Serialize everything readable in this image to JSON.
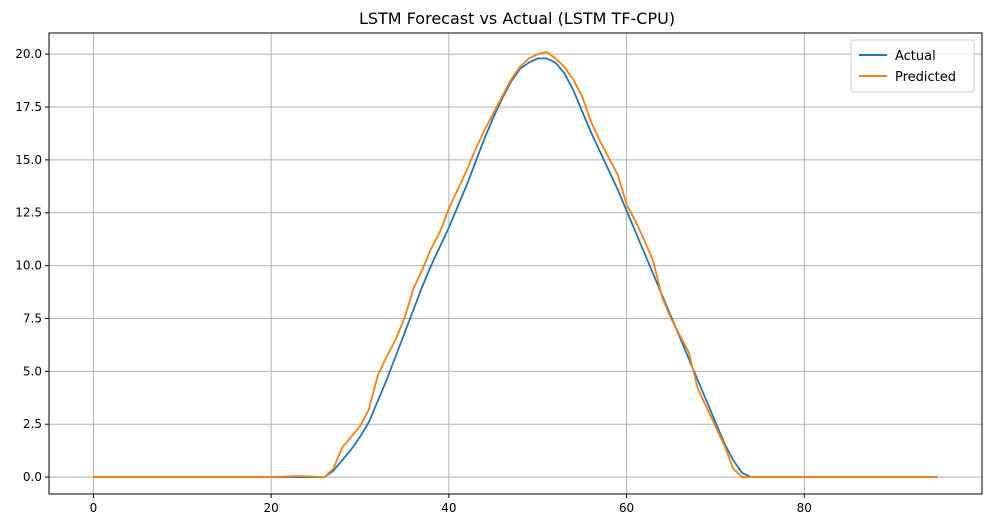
{
  "chart_data": {
    "type": "line",
    "title": "LSTM Forecast vs Actual (LSTM TF-CPU)",
    "xlabel": "",
    "ylabel": "",
    "xlim": [
      -5,
      100
    ],
    "ylim": [
      -0.8,
      21.0
    ],
    "x_ticks": [
      0,
      20,
      40,
      60,
      80
    ],
    "x_tick_labels": [
      "0",
      "20",
      "40",
      "60",
      "80"
    ],
    "y_ticks": [
      0.0,
      2.5,
      5.0,
      7.5,
      10.0,
      12.5,
      15.0,
      17.5,
      20.0
    ],
    "y_tick_labels": [
      "0.0",
      "2.5",
      "5.0",
      "7.5",
      "10.0",
      "12.5",
      "15.0",
      "17.5",
      "20.0"
    ],
    "grid": true,
    "legend_position": "top-right",
    "series": [
      {
        "name": "Actual",
        "color": "#1f77b4",
        "points": [
          [
            0,
            0.0
          ],
          [
            5,
            0.0
          ],
          [
            10,
            0.0
          ],
          [
            15,
            0.0
          ],
          [
            20,
            0.0
          ],
          [
            26,
            0.0
          ],
          [
            27,
            0.3
          ],
          [
            28,
            0.8
          ],
          [
            29,
            1.3
          ],
          [
            30,
            1.9
          ],
          [
            31,
            2.6
          ],
          [
            32,
            3.6
          ],
          [
            33,
            4.6
          ],
          [
            34,
            5.7
          ],
          [
            35,
            6.8
          ],
          [
            36,
            7.9
          ],
          [
            37,
            9.0
          ],
          [
            38,
            10.0
          ],
          [
            39,
            10.9
          ],
          [
            40,
            11.8
          ],
          [
            41,
            12.8
          ],
          [
            42,
            13.8
          ],
          [
            43,
            14.9
          ],
          [
            44,
            16.0
          ],
          [
            45,
            17.0
          ],
          [
            46,
            17.9
          ],
          [
            47,
            18.7
          ],
          [
            48,
            19.3
          ],
          [
            49,
            19.6
          ],
          [
            50,
            19.8
          ],
          [
            51,
            19.8
          ],
          [
            52,
            19.6
          ],
          [
            53,
            19.1
          ],
          [
            54,
            18.3
          ],
          [
            55,
            17.3
          ],
          [
            56,
            16.3
          ],
          [
            57,
            15.4
          ],
          [
            58,
            14.5
          ],
          [
            59,
            13.6
          ],
          [
            60,
            12.6
          ],
          [
            61,
            11.6
          ],
          [
            62,
            10.6
          ],
          [
            63,
            9.6
          ],
          [
            64,
            8.6
          ],
          [
            65,
            7.6
          ],
          [
            66,
            6.6
          ],
          [
            67,
            5.6
          ],
          [
            68,
            4.6
          ],
          [
            69,
            3.6
          ],
          [
            70,
            2.6
          ],
          [
            71,
            1.6
          ],
          [
            72,
            0.8
          ],
          [
            73,
            0.2
          ],
          [
            74,
            0.0
          ],
          [
            80,
            0.0
          ],
          [
            85,
            0.0
          ],
          [
            90,
            0.0
          ],
          [
            95,
            0.0
          ]
        ]
      },
      {
        "name": "Predicted",
        "color": "#ff7f0e",
        "points": [
          [
            0,
            0.0
          ],
          [
            5,
            0.0
          ],
          [
            10,
            0.0
          ],
          [
            15,
            0.0
          ],
          [
            20,
            0.0
          ],
          [
            23,
            0.05
          ],
          [
            26,
            0.0
          ],
          [
            27,
            0.4
          ],
          [
            28,
            1.4
          ],
          [
            29,
            1.9
          ],
          [
            30,
            2.4
          ],
          [
            31,
            3.2
          ],
          [
            32,
            4.8
          ],
          [
            33,
            5.7
          ],
          [
            34,
            6.5
          ],
          [
            35,
            7.5
          ],
          [
            36,
            8.9
          ],
          [
            37,
            9.8
          ],
          [
            38,
            10.8
          ],
          [
            39,
            11.6
          ],
          [
            40,
            12.7
          ],
          [
            41,
            13.6
          ],
          [
            42,
            14.5
          ],
          [
            43,
            15.5
          ],
          [
            44,
            16.4
          ],
          [
            45,
            17.2
          ],
          [
            46,
            18.0
          ],
          [
            47,
            18.8
          ],
          [
            48,
            19.4
          ],
          [
            49,
            19.8
          ],
          [
            50,
            20.0
          ],
          [
            51,
            20.1
          ],
          [
            52,
            19.8
          ],
          [
            53,
            19.4
          ],
          [
            54,
            18.8
          ],
          [
            55,
            18.0
          ],
          [
            56,
            16.8
          ],
          [
            57,
            15.9
          ],
          [
            58,
            15.1
          ],
          [
            59,
            14.3
          ],
          [
            60,
            12.9
          ],
          [
            61,
            12.1
          ],
          [
            62,
            11.2
          ],
          [
            63,
            10.2
          ],
          [
            64,
            8.5
          ],
          [
            65,
            7.5
          ],
          [
            66,
            6.7
          ],
          [
            67,
            5.9
          ],
          [
            68,
            4.2
          ],
          [
            69,
            3.3
          ],
          [
            70,
            2.4
          ],
          [
            71,
            1.5
          ],
          [
            72,
            0.4
          ],
          [
            73,
            0.0
          ],
          [
            80,
            0.0
          ],
          [
            85,
            0.0
          ],
          [
            90,
            0.0
          ],
          [
            95,
            0.0
          ]
        ]
      }
    ]
  }
}
